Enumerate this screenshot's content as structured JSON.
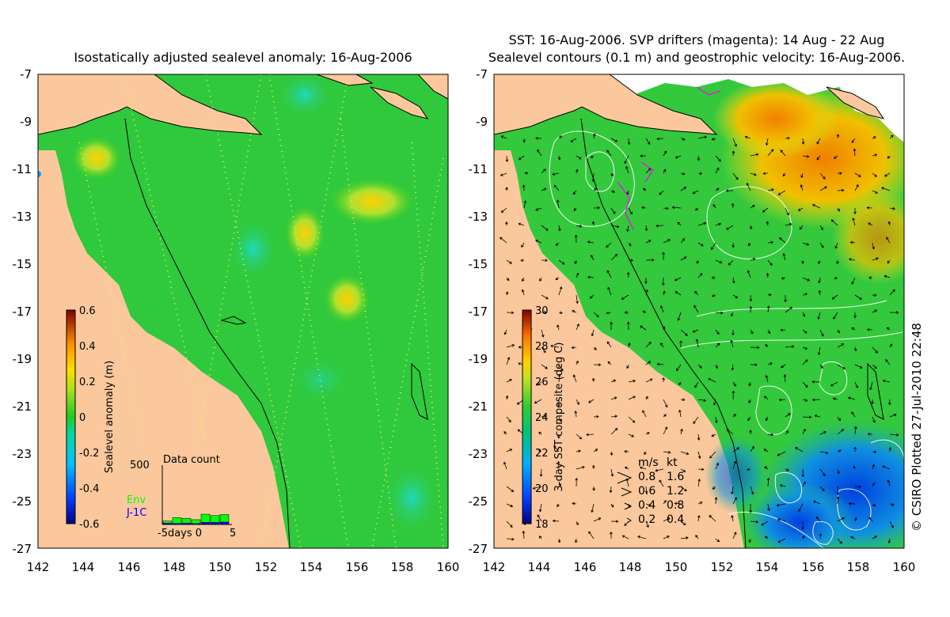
{
  "left_panel": {
    "title": "Isostatically adjusted sealevel anomaly: 16-Aug-2006",
    "colorbar": {
      "label": "Sealevel anomaly (m)",
      "ticks": [
        "0.6",
        "0.4",
        "0.2",
        "0",
        "-0.2",
        "-0.4",
        "-0.6"
      ]
    },
    "data_count": {
      "title": "Data count",
      "ymax_label": "500",
      "xlabel": "-5days 0",
      "xlabel_end": "5",
      "legend_env": "Env",
      "legend_j1c": "J-1C",
      "env_values": [
        30,
        85,
        70,
        55,
        120,
        100,
        110
      ],
      "j1c_values": [
        20,
        15,
        20,
        15,
        30,
        30,
        35
      ]
    }
  },
  "right_panel": {
    "title_line1": "SST: 16-Aug-2006. SVP drifters (magenta): 14 Aug - 22 Aug",
    "title_line2": "Sealevel contours (0.1 m) and geostrophic velocity: 16-Aug-2006.",
    "colorbar": {
      "label": "3-day SST composite (deg C)",
      "ticks": [
        "30",
        "28",
        "26",
        "24",
        "22",
        "20",
        "18"
      ]
    },
    "velocity_legend": {
      "header_ms": "m/s",
      "header_kt": "kt",
      "rows": [
        {
          "ms": "0.8",
          "kt": "1.6"
        },
        {
          "ms": "0.6",
          "kt": "1.2"
        },
        {
          "ms": "0.4",
          "kt": "0.8"
        },
        {
          "ms": "0.2",
          "kt": "0.4"
        }
      ]
    }
  },
  "y_ticks": [
    "-7",
    "-9",
    "-11",
    "-13",
    "-15",
    "-17",
    "-19",
    "-21",
    "-23",
    "-25",
    "-27"
  ],
  "x_ticks": [
    "142",
    "144",
    "146",
    "148",
    "150",
    "152",
    "154",
    "156",
    "158",
    "160"
  ],
  "credit": "© CSIRO Plotted 27-Jul-2010 22:48",
  "colors": {
    "land": "#fac89c",
    "sla_base": "#22cc22",
    "sst_green": "#33cc33",
    "sst_orange": "#f0a020",
    "sst_blue": "#2266dd",
    "contour": "#ffffff",
    "env": "#00ff00",
    "j1c": "#0000ff"
  }
}
